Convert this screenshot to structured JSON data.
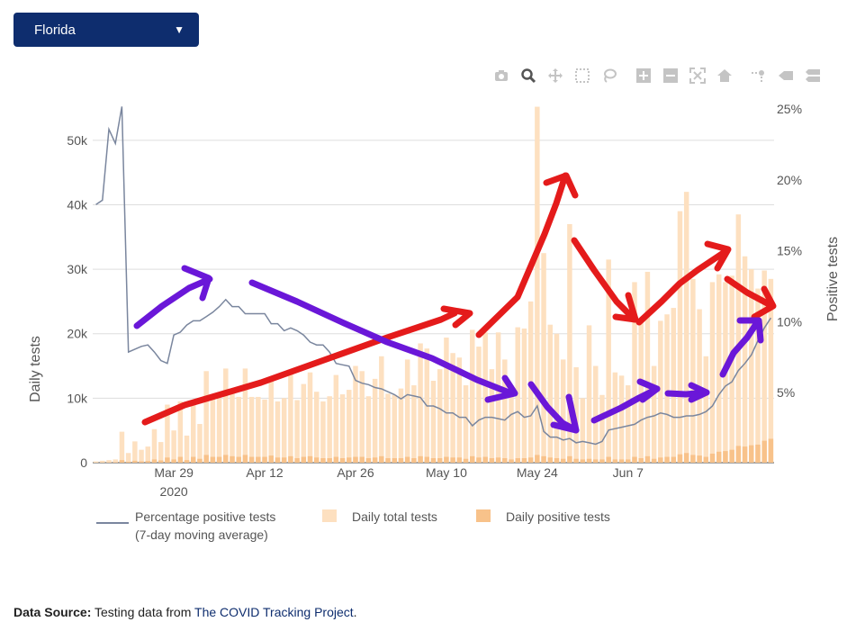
{
  "state_select": {
    "value": "Florida",
    "caret": "▼"
  },
  "modebar": [
    {
      "name": "camera-icon"
    },
    {
      "name": "zoom-icon"
    },
    {
      "name": "pan-icon"
    },
    {
      "name": "box-select-icon"
    },
    {
      "name": "lasso-select-icon"
    },
    {
      "name": "zoom-in-icon"
    },
    {
      "name": "zoom-out-icon"
    },
    {
      "name": "autoscale-icon"
    },
    {
      "name": "reset-axes-icon"
    },
    {
      "name": "spike-lines-icon"
    },
    {
      "name": "hover-closest-icon"
    },
    {
      "name": "hover-compare-icon"
    }
  ],
  "chart_data": {
    "type": "bar",
    "x_start": "2020-03-17",
    "x_ticks": [
      {
        "date": "2020-03-29",
        "label": "Mar 29",
        "sublabel": "2020"
      },
      {
        "date": "2020-04-12",
        "label": "Apr 12",
        "sublabel": ""
      },
      {
        "date": "2020-04-26",
        "label": "Apr 26",
        "sublabel": ""
      },
      {
        "date": "2020-05-10",
        "label": "May 10",
        "sublabel": ""
      },
      {
        "date": "2020-05-24",
        "label": "May 24",
        "sublabel": ""
      },
      {
        "date": "2020-06-07",
        "label": "Jun 7",
        "sublabel": ""
      }
    ],
    "ylabel_left": "Daily tests",
    "ylabel_right": "Positive tests",
    "ylim_left": [
      0,
      55000
    ],
    "ylim_right": [
      0,
      25
    ],
    "y_left_ticks": [
      {
        "v": 0,
        "label": "0"
      },
      {
        "v": 10000,
        "label": "10k"
      },
      {
        "v": 20000,
        "label": "20k"
      },
      {
        "v": 30000,
        "label": "30k"
      },
      {
        "v": 40000,
        "label": "40k"
      },
      {
        "v": 50000,
        "label": "50k"
      }
    ],
    "y_right_ticks": [
      {
        "v": 5,
        "label": "5%"
      },
      {
        "v": 10,
        "label": "10%"
      },
      {
        "v": 15,
        "label": "15%"
      },
      {
        "v": 20,
        "label": "20%"
      },
      {
        "v": 25,
        "label": "25%"
      }
    ],
    "series": [
      {
        "name": "Daily total tests",
        "axis": "left",
        "color": "#fde0c0",
        "values": [
          200,
          300,
          400,
          500,
          4800,
          1500,
          3300,
          2000,
          2500,
          5200,
          3200,
          9000,
          5000,
          9500,
          4200,
          9500,
          6000,
          14200,
          9800,
          10000,
          14600,
          10800,
          10200,
          14600,
          10200,
          10200,
          9800,
          13300,
          9500,
          10000,
          13800,
          9700,
          12200,
          14000,
          11000,
          9500,
          10300,
          13600,
          10600,
          11300,
          15000,
          14200,
          10300,
          13000,
          16500,
          10700,
          10500,
          11500,
          16000,
          12000,
          18500,
          17700,
          12700,
          14500,
          19400,
          17000,
          16300,
          12000,
          20600,
          18000,
          20200,
          14500,
          20200,
          16000,
          12000,
          21000,
          20800,
          25000,
          55200,
          32500,
          21400,
          20000,
          16000,
          37000,
          14800,
          10000,
          21300,
          15000,
          10500,
          31500,
          14000,
          13500,
          12000,
          28000,
          22000,
          29600,
          15000,
          22000,
          23000,
          24000,
          39000,
          42000,
          28500,
          23800,
          16500,
          28000,
          29200,
          28000,
          29000,
          38500,
          32000,
          30000,
          27000,
          29800,
          28500
        ]
      },
      {
        "name": "Daily positive tests",
        "axis": "left",
        "color": "#f8c28a",
        "values": [
          20,
          40,
          60,
          80,
          400,
          150,
          300,
          200,
          250,
          500,
          350,
          800,
          500,
          900,
          400,
          900,
          600,
          1200,
          900,
          900,
          1200,
          1000,
          900,
          1200,
          900,
          900,
          900,
          1100,
          800,
          800,
          1000,
          700,
          900,
          1000,
          800,
          700,
          700,
          900,
          700,
          800,
          900,
          900,
          700,
          800,
          1000,
          700,
          700,
          700,
          900,
          700,
          1000,
          900,
          700,
          700,
          900,
          800,
          800,
          600,
          1000,
          800,
          900,
          700,
          800,
          700,
          500,
          700,
          700,
          800,
          1200,
          1000,
          800,
          700,
          600,
          1000,
          600,
          500,
          600,
          500,
          500,
          900,
          500,
          500,
          500,
          900,
          700,
          1000,
          600,
          800,
          900,
          900,
          1300,
          1500,
          1200,
          1100,
          900,
          1400,
          1700,
          1800,
          2000,
          2600,
          2500,
          2700,
          2800,
          3400,
          3700
        ]
      },
      {
        "name": "Percentage positive tests\n(7-day moving average)",
        "axis": "right",
        "color": "#7a869e",
        "values": [
          18.2,
          18.5,
          23.5,
          22.5,
          25.1,
          7.8,
          8,
          8.2,
          8.3,
          7.8,
          7.2,
          7,
          9,
          9.2,
          9.7,
          10,
          10,
          10.3,
          10.6,
          11,
          11.5,
          11,
          11,
          10.5,
          10.5,
          10.5,
          10.5,
          9.8,
          9.8,
          9.3,
          9.5,
          9.3,
          9,
          8.5,
          8.3,
          8.3,
          7.8,
          7,
          6.9,
          6.8,
          5.8,
          5.6,
          5.5,
          5.3,
          5.2,
          5,
          4.8,
          4.5,
          4.8,
          4.7,
          4.6,
          4,
          4,
          3.8,
          3.5,
          3.5,
          3.2,
          3.2,
          2.6,
          3,
          3.2,
          3.2,
          3.1,
          3,
          3.4,
          3.6,
          3.2,
          3.3,
          4,
          2.2,
          1.8,
          1.8,
          1.6,
          1.7,
          1.4,
          1.5,
          1.4,
          1.3,
          1.5,
          2.3,
          2.4,
          2.5,
          2.6,
          2.7,
          3,
          3.2,
          3.3,
          3.5,
          3.4,
          3.2,
          3.2,
          3.3,
          3.3,
          3.4,
          3.6,
          4,
          4.8,
          5.4,
          5.7,
          6.5,
          7,
          7.6,
          8.6,
          9.5,
          10.2
        ]
      }
    ],
    "annotations": [
      {
        "color": "#e41b1b",
        "points": [
          [
            161,
            469
          ],
          [
            205,
            450
          ],
          [
            290,
            425
          ],
          [
            360,
            400
          ],
          [
            430,
            375
          ],
          [
            490,
            355
          ],
          [
            505,
            348
          ]
        ],
        "arrow": [
          [
            493,
            343
          ],
          [
            522,
            348
          ],
          [
            506,
            361
          ]
        ]
      },
      {
        "color": "#e41b1b",
        "points": [
          [
            532,
            372
          ],
          [
            575,
            330
          ],
          [
            605,
            260
          ],
          [
            618,
            226
          ],
          [
            628,
            195
          ]
        ],
        "arrow": [
          [
            607,
            203
          ],
          [
            629,
            195
          ],
          [
            639,
            217
          ]
        ]
      },
      {
        "color": "#e41b1b",
        "points": [
          [
            638,
            267
          ],
          [
            660,
            300
          ],
          [
            685,
            335
          ],
          [
            705,
            355
          ]
        ],
        "arrow": [
          [
            698,
            328
          ],
          [
            706,
            355
          ],
          [
            684,
            352
          ]
        ]
      },
      {
        "color": "#e41b1b",
        "points": [
          [
            710,
            358
          ],
          [
            735,
            335
          ],
          [
            755,
            315
          ],
          [
            775,
            300
          ],
          [
            808,
            278
          ]
        ],
        "arrow": [
          [
            786,
            271
          ],
          [
            809,
            277
          ],
          [
            797,
            298
          ]
        ]
      },
      {
        "color": "#e41b1b",
        "points": [
          [
            808,
            310
          ],
          [
            830,
            325
          ],
          [
            858,
            340
          ]
        ],
        "arrow": [
          [
            849,
            321
          ],
          [
            859,
            340
          ],
          [
            838,
            352
          ]
        ]
      },
      {
        "color": "#6a17d8",
        "points": [
          [
            152,
            362
          ],
          [
            180,
            340
          ],
          [
            210,
            320
          ],
          [
            233,
            310
          ]
        ],
        "arrow": [
          [
            205,
            298
          ],
          [
            232,
            309
          ],
          [
            225,
            331
          ]
        ]
      },
      {
        "color": "#6a17d8",
        "points": [
          [
            280,
            314
          ],
          [
            330,
            335
          ],
          [
            380,
            358
          ],
          [
            430,
            380
          ],
          [
            480,
            398
          ],
          [
            530,
            422
          ],
          [
            568,
            437
          ]
        ],
        "arrow": [
          [
            561,
            420
          ],
          [
            572,
            437
          ],
          [
            542,
            444
          ]
        ]
      },
      {
        "color": "#6a17d8",
        "points": [
          [
            590,
            427
          ],
          [
            608,
            452
          ],
          [
            625,
            470
          ],
          [
            640,
            478
          ]
        ],
        "arrow": [
          [
            632,
            441
          ],
          [
            640,
            478
          ],
          [
            615,
            472
          ]
        ]
      },
      {
        "color": "#6a17d8",
        "points": [
          [
            660,
            467
          ],
          [
            690,
            453
          ],
          [
            710,
            442
          ],
          [
            730,
            432
          ]
        ],
        "arrow": [
          [
            711,
            424
          ],
          [
            730,
            432
          ],
          [
            714,
            444
          ]
        ]
      },
      {
        "color": "#6a17d8",
        "points": [
          [
            742,
            437
          ],
          [
            762,
            438
          ],
          [
            785,
            436
          ]
        ],
        "arrow": [
          [
            768,
            428
          ],
          [
            785,
            436
          ],
          [
            768,
            444
          ]
        ]
      },
      {
        "color": "#6a17d8",
        "points": [
          [
            803,
            416
          ],
          [
            815,
            392
          ],
          [
            830,
            375
          ],
          [
            842,
            357
          ]
        ],
        "arrow": [
          [
            822,
            356
          ],
          [
            843,
            356
          ],
          [
            845,
            378
          ]
        ]
      }
    ]
  },
  "source": {
    "label": "Data Source:",
    "text": " Testing data from ",
    "link": "The COVID Tracking Project",
    "end": "."
  }
}
